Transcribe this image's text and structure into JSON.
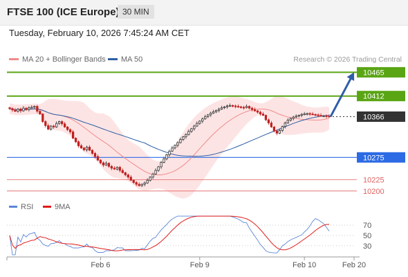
{
  "header": {
    "title": "FTSE 100 (ICE Europe)",
    "interval": "30 MIN"
  },
  "datetime": "Tuesday, February 10, 2026 7:45:24 AM CET",
  "legend": {
    "ma20": {
      "label": "MA 20 + Bollinger Bands",
      "color": "#f08a8a"
    },
    "ma50": {
      "label": "MA 50",
      "color": "#2d5fa3"
    }
  },
  "copyright": "Research © 2026 Trading Central",
  "rsi_legend": {
    "rsi": {
      "label": "RSI",
      "color": "#5a86d6"
    },
    "ma9": {
      "label": "9MA",
      "color": "#e01b1b"
    }
  },
  "colors": {
    "up": "#2d2d2d",
    "down": "#c02020",
    "target_up": "#5aa514",
    "support": "#2d6be4",
    "current": "#333333",
    "red_level": "#e06060",
    "arrow": "#2f5da8",
    "band": "#fde4e4"
  },
  "chart_data": [
    {
      "type": "candlestick",
      "title": "FTSE 100 (ICE Europe)",
      "interval": "30 MIN",
      "ylim": [
        10175,
        10495
      ],
      "levels": [
        {
          "value": 10465,
          "label": "10465",
          "kind": "resistance"
        },
        {
          "value": 10412,
          "label": "10412",
          "kind": "resistance"
        },
        {
          "value": 10366,
          "label": "10366",
          "kind": "current"
        },
        {
          "value": 10275,
          "label": "10275",
          "kind": "support"
        },
        {
          "value": 10225,
          "label": "10225",
          "kind": "support-minor"
        },
        {
          "value": 10200,
          "label": "10200",
          "kind": "support-minor"
        }
      ],
      "close": [
        10384,
        10381,
        10378,
        10383,
        10379,
        10385,
        10382,
        10386,
        10387,
        10389,
        10378,
        10372,
        10355,
        10346,
        10338,
        10345,
        10343,
        10351,
        10355,
        10350,
        10343,
        10337,
        10332,
        10318,
        10310,
        10301,
        10296,
        10292,
        10298,
        10291,
        10284,
        10277,
        10269,
        10263,
        10258,
        10262,
        10255,
        10251,
        10249,
        10253,
        10246,
        10241,
        10236,
        10231,
        10224,
        10219,
        10215,
        10212,
        10215,
        10218,
        10224,
        10231,
        10238,
        10246,
        10254,
        10264,
        10272,
        10281,
        10289,
        10296,
        10302,
        10308,
        10315,
        10321,
        10326,
        10333,
        10339,
        10345,
        10351,
        10356,
        10361,
        10366,
        10370,
        10374,
        10377,
        10380,
        10383,
        10386,
        10388,
        10390,
        10391,
        10390,
        10389,
        10388,
        10387,
        10386,
        10389,
        10385,
        10382,
        10379,
        10376,
        10372,
        10369,
        10359,
        10352,
        10343,
        10334,
        10329,
        10335,
        10344,
        10352,
        10358,
        10362,
        10365,
        10367,
        10369,
        10371,
        10372,
        10373,
        10372,
        10371,
        10370,
        10369,
        10368,
        10368,
        10367,
        10366
      ],
      "arrow": {
        "from": 10366,
        "to": 10465
      },
      "series": [
        {
          "name": "MA 20 + Bollinger Bands"
        },
        {
          "name": "MA 50"
        }
      ],
      "x_ticks": [
        "Feb 6",
        "Feb 9",
        "Feb 10",
        "Feb 20"
      ]
    },
    {
      "type": "line",
      "ylim": [
        15,
        85
      ],
      "y_ticks": [
        70,
        50,
        30
      ],
      "series": [
        {
          "name": "RSI"
        },
        {
          "name": "9MA"
        }
      ]
    }
  ]
}
